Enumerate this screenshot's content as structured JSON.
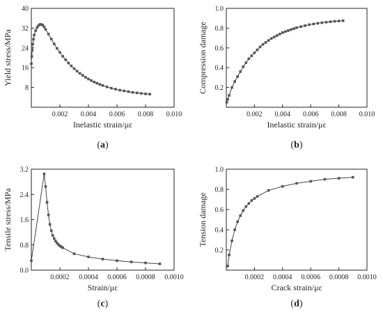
{
  "chart_data": [
    {
      "type": "line",
      "panel_label": "a",
      "xlabel": "Inelastic strain/με",
      "ylabel": "Yield stress/MPa",
      "xlim": [
        0,
        0.01
      ],
      "ylim": [
        0,
        40
      ],
      "xticks": [
        0.002,
        0.004,
        0.006,
        0.008,
        0.01
      ],
      "xtick_labels": [
        "0.002",
        "0.004",
        "0.006",
        "0.008",
        "0.010"
      ],
      "yticks": [
        8,
        16,
        24,
        32,
        40
      ],
      "ytick_labels": [
        "8",
        "16",
        "24",
        "32",
        "40"
      ],
      "markers": true,
      "grid": false,
      "series": [
        {
          "x": [
            0,
            3e-05,
            6e-05,
            0.0001,
            0.00015,
            0.0002,
            0.0003,
            0.0004,
            0.0005,
            0.0006,
            0.0007,
            0.0008,
            0.0009,
            0.001,
            0.0012,
            0.0014,
            0.0016,
            0.0018,
            0.002,
            0.0022,
            0.0024,
            0.0026,
            0.0028,
            0.003,
            0.0032,
            0.0034,
            0.0036,
            0.0038,
            0.004,
            0.0042,
            0.0044,
            0.0046,
            0.0048,
            0.005,
            0.0053,
            0.0056,
            0.0059,
            0.0062,
            0.0065,
            0.0068,
            0.0071,
            0.0074,
            0.0077,
            0.008,
            0.0083
          ],
          "y": [
            17.6,
            20.5,
            23.1,
            25.5,
            27.5,
            29.2,
            31.0,
            32.2,
            33.0,
            33.5,
            33.5,
            33.2,
            32.5,
            31.5,
            29.6,
            27.6,
            25.6,
            23.8,
            22.2,
            20.6,
            19.2,
            17.9,
            16.7,
            15.6,
            14.6,
            13.7,
            12.9,
            12.1,
            11.4,
            10.8,
            10.2,
            9.7,
            9.2,
            8.8,
            8.2,
            7.7,
            7.3,
            6.9,
            6.6,
            6.3,
            6.0,
            5.8,
            5.6,
            5.4,
            5.3
          ]
        }
      ]
    },
    {
      "type": "line",
      "panel_label": "b",
      "xlabel": "Inelastic strain/με",
      "ylabel": "Compression damage",
      "xlim": [
        0,
        0.01
      ],
      "ylim": [
        0,
        1.0
      ],
      "xticks": [
        0.002,
        0.004,
        0.006,
        0.008,
        0.01
      ],
      "xtick_labels": [
        "0.002",
        "0.004",
        "0.006",
        "0.008",
        "0.010"
      ],
      "yticks": [
        0.2,
        0.4,
        0.6,
        0.8,
        1.0
      ],
      "ytick_labels": [
        "0.2",
        "0.4",
        "0.6",
        "0.8",
        "1.0"
      ],
      "markers": true,
      "grid": false,
      "series": [
        {
          "x": [
            3e-05,
            0.0001,
            0.0002,
            0.0004,
            0.0006,
            0.0008,
            0.001,
            0.0012,
            0.0014,
            0.0016,
            0.0018,
            0.002,
            0.0022,
            0.0024,
            0.0026,
            0.0028,
            0.003,
            0.0032,
            0.0034,
            0.0036,
            0.0038,
            0.004,
            0.0042,
            0.0044,
            0.0046,
            0.0048,
            0.005,
            0.0053,
            0.0056,
            0.0059,
            0.0062,
            0.0065,
            0.0068,
            0.0071,
            0.0074,
            0.0077,
            0.008,
            0.0083
          ],
          "y": [
            0.05,
            0.08,
            0.12,
            0.2,
            0.26,
            0.31,
            0.36,
            0.41,
            0.45,
            0.49,
            0.52,
            0.55,
            0.58,
            0.61,
            0.635,
            0.655,
            0.675,
            0.695,
            0.71,
            0.725,
            0.74,
            0.755,
            0.765,
            0.775,
            0.785,
            0.795,
            0.805,
            0.815,
            0.825,
            0.835,
            0.842,
            0.849,
            0.855,
            0.86,
            0.865,
            0.869,
            0.872,
            0.875
          ]
        }
      ]
    },
    {
      "type": "line",
      "panel_label": "c",
      "xlabel": "Strain/με",
      "ylabel": "Tensile stress/MPa",
      "xlim": [
        0,
        0.001
      ],
      "ylim": [
        0,
        3.2
      ],
      "xticks": [
        0.0002,
        0.0004,
        0.0006,
        0.0008,
        0.001
      ],
      "xtick_labels": [
        "0.0002",
        "0.0004",
        "0.0006",
        "0.0008",
        "0.0010"
      ],
      "yticks": [
        0.0,
        0.8,
        1.6,
        2.4,
        3.2
      ],
      "ytick_labels": [
        "0.0",
        "0.8",
        "1.6",
        "2.4",
        "3.2"
      ],
      "markers": true,
      "grid": false,
      "series": [
        {
          "x": [
            0,
            9e-05,
            0.0001,
            0.00011,
            0.00012,
            0.00013,
            0.00014,
            0.00015,
            0.00016,
            0.00017,
            0.00018,
            0.00019,
            0.0002,
            0.00021,
            0.00022,
            0.0003,
            0.0004,
            0.0005,
            0.0006,
            0.0007,
            0.0008,
            0.0009
          ],
          "y": [
            0.3,
            3.05,
            2.65,
            2.15,
            1.75,
            1.45,
            1.25,
            1.1,
            1.0,
            0.92,
            0.86,
            0.81,
            0.77,
            0.74,
            0.71,
            0.52,
            0.42,
            0.35,
            0.3,
            0.26,
            0.23,
            0.2
          ]
        }
      ]
    },
    {
      "type": "line",
      "panel_label": "d",
      "xlabel": "Crack strain/με",
      "ylabel": "Tension damage",
      "xlim": [
        0,
        0.001
      ],
      "ylim": [
        0,
        1.0
      ],
      "xticks": [
        0.0002,
        0.0004,
        0.0006,
        0.0008,
        0.001
      ],
      "xtick_labels": [
        "0.0002",
        "0.0004",
        "0.0006",
        "0.0008",
        "0.0010"
      ],
      "yticks": [
        0.2,
        0.4,
        0.6,
        0.8,
        1.0
      ],
      "ytick_labels": [
        "0.2",
        "0.4",
        "0.6",
        "0.8",
        "1.0"
      ],
      "markers": true,
      "grid": false,
      "series": [
        {
          "x": [
            1e-05,
            2e-05,
            4e-05,
            6e-05,
            8e-05,
            0.0001,
            0.00012,
            0.00014,
            0.00016,
            0.00018,
            0.0002,
            0.00022,
            0.0003,
            0.0004,
            0.0005,
            0.0006,
            0.0007,
            0.0008,
            0.0009
          ],
          "y": [
            0.04,
            0.15,
            0.29,
            0.4,
            0.48,
            0.54,
            0.59,
            0.63,
            0.66,
            0.69,
            0.71,
            0.73,
            0.79,
            0.83,
            0.86,
            0.88,
            0.9,
            0.91,
            0.92
          ]
        }
      ]
    }
  ]
}
